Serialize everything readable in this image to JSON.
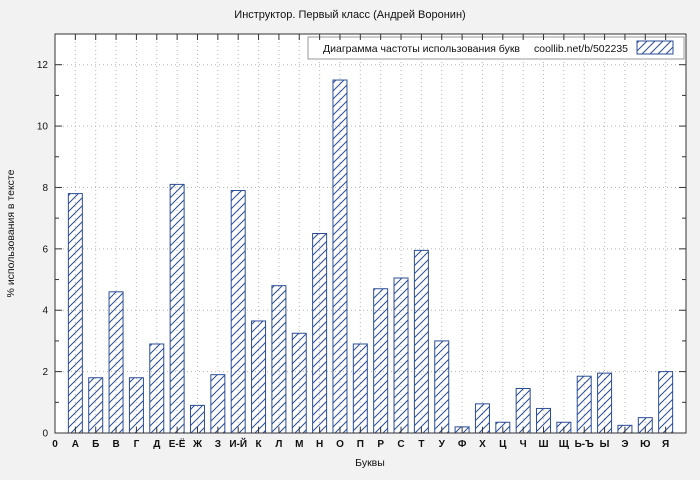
{
  "window": {
    "title": "Инструктор. Первый класс (Андрей Воронин)"
  },
  "chart_data": {
    "type": "bar",
    "title": "Инструктор. Первый класс (Андрей Воронин)",
    "legend": {
      "label": "Диаграмма частоты использования букв",
      "source": "coollib.net/b/502235"
    },
    "xlabel": "Буквы",
    "ylabel": "% использования в тексте",
    "origin_label": "0",
    "categories": [
      "А",
      "Б",
      "В",
      "Г",
      "Д",
      "Е-Ё",
      "Ж",
      "З",
      "И-Й",
      "К",
      "Л",
      "М",
      "Н",
      "О",
      "П",
      "Р",
      "С",
      "Т",
      "У",
      "Ф",
      "Х",
      "Ц",
      "Ч",
      "Ш",
      "Щ",
      "Ь-Ъ",
      "Ы",
      "Э",
      "Ю",
      "Я"
    ],
    "values": [
      7.8,
      1.8,
      4.6,
      1.8,
      2.9,
      8.1,
      0.9,
      1.9,
      7.9,
      3.65,
      4.8,
      3.25,
      6.5,
      11.5,
      2.9,
      4.7,
      5.05,
      5.95,
      3.0,
      0.2,
      0.95,
      0.35,
      1.45,
      0.8,
      0.35,
      1.85,
      1.95,
      0.25,
      0.5,
      2.0
    ],
    "ylim": [
      0,
      13
    ],
    "ytick_step": 2,
    "grid": "dotted",
    "legend_position": "top-right",
    "colors": {
      "bar": "#2b4d97",
      "grid": "#b5b5b5",
      "axis": "#333333",
      "background": "#f2f2f2",
      "plot_background": "#ffffff",
      "text": "#111111"
    }
  }
}
